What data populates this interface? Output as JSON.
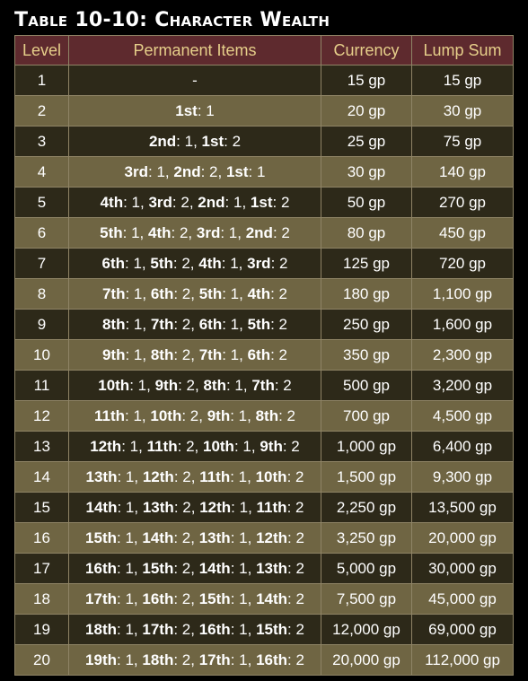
{
  "title": "Table 10-10: Character Wealth",
  "headers": {
    "level": "Level",
    "items": "Permanent Items",
    "currency": "Currency",
    "lump": "Lump Sum"
  },
  "rows": [
    {
      "level": "1",
      "items": [
        {
          "text": "-"
        }
      ],
      "currency": "15 gp",
      "lump": "15 gp"
    },
    {
      "level": "2",
      "items": [
        {
          "slot": "1st",
          "count": "1"
        }
      ],
      "currency": "20 gp",
      "lump": "30 gp"
    },
    {
      "level": "3",
      "items": [
        {
          "slot": "2nd",
          "count": "1"
        },
        {
          "slot": "1st",
          "count": "2"
        }
      ],
      "currency": "25 gp",
      "lump": "75 gp"
    },
    {
      "level": "4",
      "items": [
        {
          "slot": "3rd",
          "count": "1"
        },
        {
          "slot": "2nd",
          "count": "2"
        },
        {
          "slot": "1st",
          "count": "1"
        }
      ],
      "currency": "30 gp",
      "lump": "140 gp"
    },
    {
      "level": "5",
      "items": [
        {
          "slot": "4th",
          "count": "1"
        },
        {
          "slot": "3rd",
          "count": "2"
        },
        {
          "slot": "2nd",
          "count": "1"
        },
        {
          "slot": "1st",
          "count": "2"
        }
      ],
      "currency": "50 gp",
      "lump": "270 gp"
    },
    {
      "level": "6",
      "items": [
        {
          "slot": "5th",
          "count": "1"
        },
        {
          "slot": "4th",
          "count": "2"
        },
        {
          "slot": "3rd",
          "count": "1"
        },
        {
          "slot": "2nd",
          "count": "2"
        }
      ],
      "currency": "80 gp",
      "lump": "450 gp"
    },
    {
      "level": "7",
      "items": [
        {
          "slot": "6th",
          "count": "1"
        },
        {
          "slot": "5th",
          "count": "2"
        },
        {
          "slot": "4th",
          "count": "1"
        },
        {
          "slot": "3rd",
          "count": "2"
        }
      ],
      "currency": "125 gp",
      "lump": "720 gp"
    },
    {
      "level": "8",
      "items": [
        {
          "slot": "7th",
          "count": "1"
        },
        {
          "slot": "6th",
          "count": "2"
        },
        {
          "slot": "5th",
          "count": "1"
        },
        {
          "slot": "4th",
          "count": "2"
        }
      ],
      "currency": "180 gp",
      "lump": "1,100 gp"
    },
    {
      "level": "9",
      "items": [
        {
          "slot": "8th",
          "count": "1"
        },
        {
          "slot": "7th",
          "count": "2"
        },
        {
          "slot": "6th",
          "count": "1"
        },
        {
          "slot": "5th",
          "count": "2"
        }
      ],
      "currency": "250 gp",
      "lump": "1,600 gp"
    },
    {
      "level": "10",
      "items": [
        {
          "slot": "9th",
          "count": "1"
        },
        {
          "slot": "8th",
          "count": "2"
        },
        {
          "slot": "7th",
          "count": "1"
        },
        {
          "slot": "6th",
          "count": "2"
        }
      ],
      "currency": "350 gp",
      "lump": "2,300 gp"
    },
    {
      "level": "11",
      "items": [
        {
          "slot": "10th",
          "count": "1"
        },
        {
          "slot": "9th",
          "count": "2"
        },
        {
          "slot": "8th",
          "count": "1"
        },
        {
          "slot": "7th",
          "count": "2"
        }
      ],
      "currency": "500 gp",
      "lump": "3,200 gp"
    },
    {
      "level": "12",
      "items": [
        {
          "slot": "11th",
          "count": "1"
        },
        {
          "slot": "10th",
          "count": "2"
        },
        {
          "slot": "9th",
          "count": "1"
        },
        {
          "slot": "8th",
          "count": "2"
        }
      ],
      "currency": "700 gp",
      "lump": "4,500 gp"
    },
    {
      "level": "13",
      "items": [
        {
          "slot": "12th",
          "count": "1"
        },
        {
          "slot": "11th",
          "count": "2"
        },
        {
          "slot": "10th",
          "count": "1"
        },
        {
          "slot": "9th",
          "count": "2"
        }
      ],
      "currency": "1,000 gp",
      "lump": "6,400 gp"
    },
    {
      "level": "14",
      "items": [
        {
          "slot": "13th",
          "count": "1"
        },
        {
          "slot": "12th",
          "count": "2"
        },
        {
          "slot": "11th",
          "count": "1"
        },
        {
          "slot": "10th",
          "count": "2"
        }
      ],
      "currency": "1,500 gp",
      "lump": "9,300 gp"
    },
    {
      "level": "15",
      "items": [
        {
          "slot": "14th",
          "count": "1"
        },
        {
          "slot": "13th",
          "count": "2"
        },
        {
          "slot": "12th",
          "count": "1"
        },
        {
          "slot": "11th",
          "count": "2"
        }
      ],
      "currency": "2,250 gp",
      "lump": "13,500 gp"
    },
    {
      "level": "16",
      "items": [
        {
          "slot": "15th",
          "count": "1"
        },
        {
          "slot": "14th",
          "count": "2"
        },
        {
          "slot": "13th",
          "count": "1"
        },
        {
          "slot": "12th",
          "count": "2"
        }
      ],
      "currency": "3,250 gp",
      "lump": "20,000 gp"
    },
    {
      "level": "17",
      "items": [
        {
          "slot": "16th",
          "count": "1"
        },
        {
          "slot": "15th",
          "count": "2"
        },
        {
          "slot": "14th",
          "count": "1"
        },
        {
          "slot": "13th",
          "count": "2"
        }
      ],
      "currency": "5,000 gp",
      "lump": "30,000 gp"
    },
    {
      "level": "18",
      "items": [
        {
          "slot": "17th",
          "count": "1"
        },
        {
          "slot": "16th",
          "count": "2"
        },
        {
          "slot": "15th",
          "count": "1"
        },
        {
          "slot": "14th",
          "count": "2"
        }
      ],
      "currency": "7,500 gp",
      "lump": "45,000 gp"
    },
    {
      "level": "19",
      "items": [
        {
          "slot": "18th",
          "count": "1"
        },
        {
          "slot": "17th",
          "count": "2"
        },
        {
          "slot": "16th",
          "count": "1"
        },
        {
          "slot": "15th",
          "count": "2"
        }
      ],
      "currency": "12,000 gp",
      "lump": "69,000 gp"
    },
    {
      "level": "20",
      "items": [
        {
          "slot": "19th",
          "count": "1"
        },
        {
          "slot": "18th",
          "count": "2"
        },
        {
          "slot": "17th",
          "count": "1"
        },
        {
          "slot": "16th",
          "count": "2"
        }
      ],
      "currency": "20,000 gp",
      "lump": "112,000 gp"
    }
  ],
  "colors": {
    "header_bg": "#5e2a2e",
    "header_text": "#e6cf8a",
    "row_dark": "#2d2919",
    "row_light": "#6f6543",
    "border": "#8f8466"
  }
}
